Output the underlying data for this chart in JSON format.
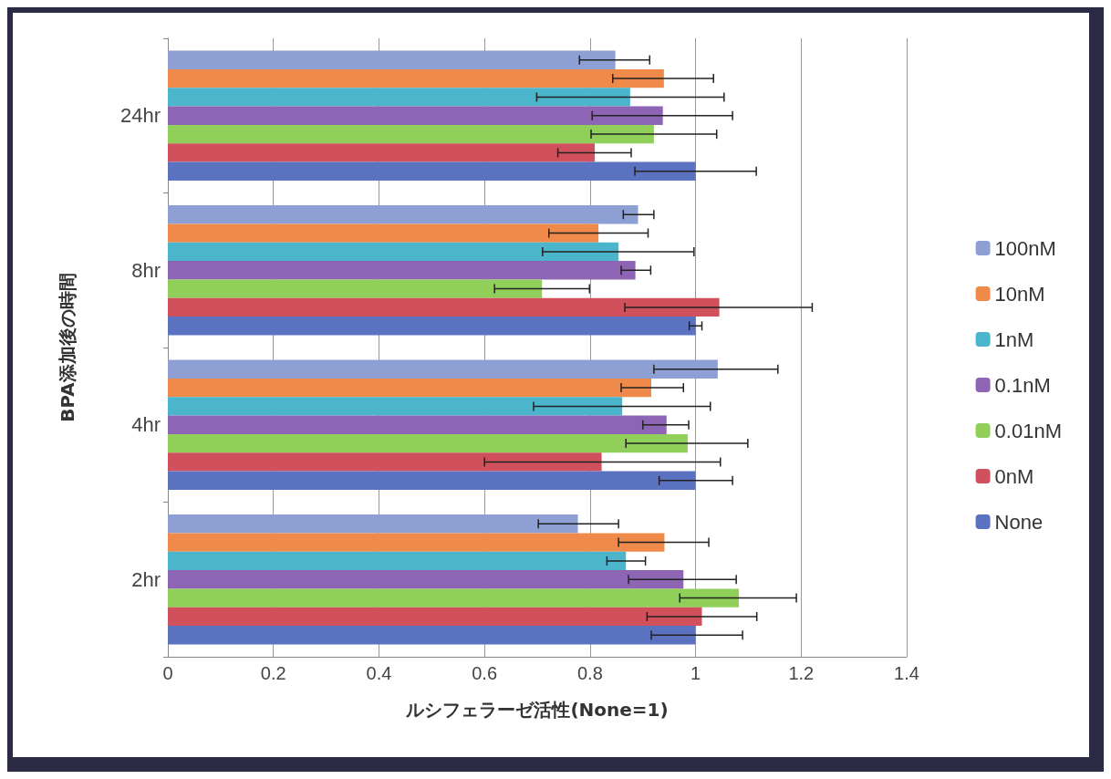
{
  "chart_data": {
    "type": "bar",
    "orientation": "horizontal",
    "xlabel": "ルシフェラーゼ活性(None=1)",
    "ylabel": "BPA添加後の時間",
    "categories": [
      "24hr",
      "8hr",
      "4hr",
      "2hr"
    ],
    "xlim": [
      0,
      1.4
    ],
    "xticks": [
      0,
      0.2,
      0.4,
      0.6,
      0.8,
      1,
      1.2,
      1.4
    ],
    "grid": "x",
    "legend": "right",
    "series": [
      {
        "name": "100nM",
        "color": "#8e9fd4",
        "values": [
          0.848,
          0.891,
          1.042,
          0.777
        ],
        "errors": [
          [
            0.78,
            0.913
          ],
          [
            0.863,
            0.921
          ],
          [
            0.921,
            1.156
          ],
          [
            0.702,
            0.854
          ]
        ]
      },
      {
        "name": "10nM",
        "color": "#ef8a4a",
        "values": [
          0.94,
          0.816,
          0.916,
          0.941
        ],
        "errors": [
          [
            0.843,
            1.034
          ],
          [
            0.722,
            0.91
          ],
          [
            0.859,
            0.977
          ],
          [
            0.854,
            1.025
          ]
        ]
      },
      {
        "name": "1nM",
        "color": "#4bb5cc",
        "values": [
          0.876,
          0.854,
          0.861,
          0.868
        ],
        "errors": [
          [
            0.699,
            1.054
          ],
          [
            0.71,
            0.997
          ],
          [
            0.693,
            1.028
          ],
          [
            0.832,
            0.905
          ]
        ]
      },
      {
        "name": "0.1nM",
        "color": "#8e64b4",
        "values": [
          0.938,
          0.886,
          0.945,
          0.977
        ],
        "errors": [
          [
            0.804,
            1.07
          ],
          [
            0.859,
            0.915
          ],
          [
            0.9,
            0.987
          ],
          [
            0.873,
            1.077
          ]
        ]
      },
      {
        "name": "0.01nM",
        "color": "#8fcf5a",
        "values": [
          0.921,
          0.709,
          0.985,
          1.082
        ],
        "errors": [
          [
            0.802,
            1.04
          ],
          [
            0.619,
            0.799
          ],
          [
            0.868,
            1.099
          ],
          [
            0.97,
            1.191
          ]
        ]
      },
      {
        "name": "0nM",
        "color": "#d0505c",
        "values": [
          0.809,
          1.045,
          0.822,
          1.012
        ],
        "errors": [
          [
            0.739,
            0.878
          ],
          [
            0.866,
            1.221
          ],
          [
            0.6,
            1.047
          ],
          [
            0.908,
            1.116
          ]
        ]
      },
      {
        "name": "None",
        "color": "#5a72c0",
        "values": [
          1,
          1,
          1,
          1
        ],
        "errors": [
          [
            0.885,
            1.115
          ],
          [
            0.988,
            1.012
          ],
          [
            0.931,
            1.07
          ],
          [
            0.916,
            1.089
          ]
        ]
      }
    ]
  }
}
